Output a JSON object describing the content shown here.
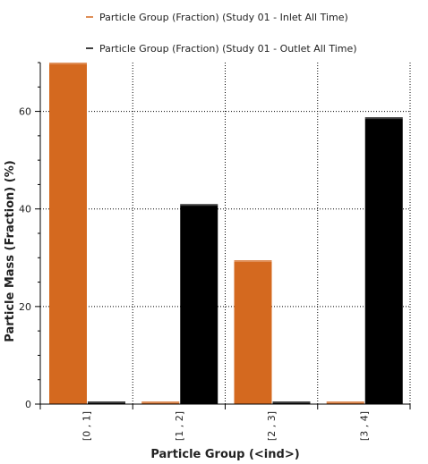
{
  "chart_data": {
    "type": "bar",
    "title": "",
    "xlabel": "Particle Group (<ind>)",
    "ylabel": "Particle Mass (Fraction) (%)",
    "categories": [
      "[0 , 1]",
      "[1 , 2]",
      "[2 , 3]",
      "[3 , 4]"
    ],
    "series": [
      {
        "name": "Particle Group (Fraction) (Study 01 - Inlet All Time)",
        "color": "#d4691f",
        "values": [
          70.0,
          0.3,
          29.5,
          0.3
        ]
      },
      {
        "name": "Particle Group (Fraction) (Study 01 - Outlet All Time)",
        "color": "#000000",
        "values": [
          0.3,
          41.0,
          0.3,
          58.8
        ]
      }
    ],
    "yticks": [
      0,
      20,
      40,
      60
    ],
    "ylim": [
      0,
      70
    ],
    "grid": true,
    "legend_position": "top"
  }
}
